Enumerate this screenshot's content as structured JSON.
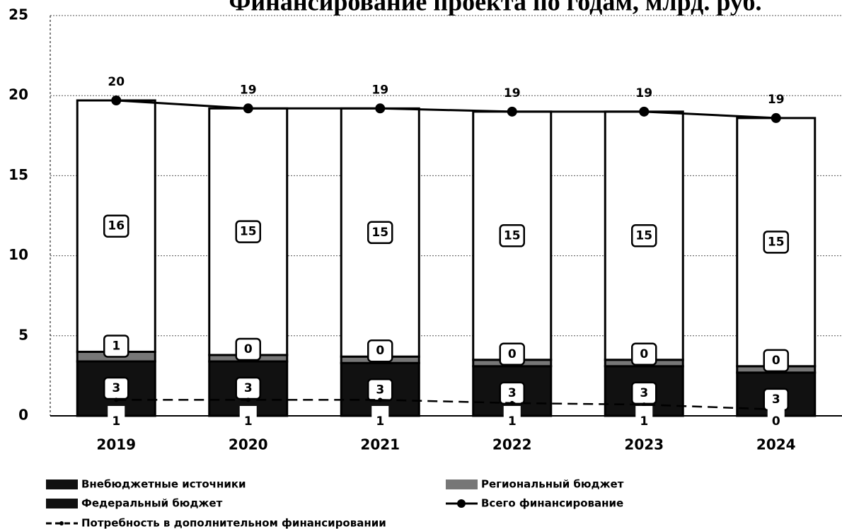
{
  "chart_data": {
    "type": "bar",
    "title": "Финансирование проекта по годам, млрд. руб.",
    "categories": [
      "2019",
      "2020",
      "2021",
      "2022",
      "2023",
      "2024"
    ],
    "stacked": true,
    "series": [
      {
        "name": "Внебюджетные источники",
        "color": "#111111",
        "values": [
          3.4,
          3.4,
          3.3,
          3.1,
          3.1,
          2.7
        ],
        "value_labels": [
          "3",
          "3",
          "3",
          "3",
          "3",
          "3"
        ]
      },
      {
        "name": "Региональный бюджет",
        "color": "#777777",
        "values": [
          0.6,
          0.4,
          0.4,
          0.4,
          0.4,
          0.4
        ],
        "value_labels": [
          "1",
          "0",
          "0",
          "0",
          "0",
          "0"
        ]
      },
      {
        "name": "Федеральный бюджет",
        "color": "#ffffff",
        "values": [
          15.7,
          15.4,
          15.5,
          15.5,
          15.5,
          15.5
        ],
        "value_labels": [
          "16",
          "15",
          "15",
          "15",
          "15",
          "15"
        ]
      },
      {
        "name": "Всего финансирование",
        "type": "line",
        "color": "#000000",
        "values": [
          19.7,
          19.2,
          19.2,
          19.0,
          19.0,
          18.6
        ],
        "value_labels": [
          "20",
          "19",
          "19",
          "19",
          "19",
          "19"
        ]
      },
      {
        "name": "Потребность в дополнительном финансировании",
        "type": "line",
        "dashed": true,
        "color": "#000000",
        "values": [
          1.0,
          1.0,
          1.0,
          0.8,
          0.7,
          0.4
        ],
        "value_labels": [
          "1",
          "1",
          "1",
          "1",
          "1",
          "0"
        ]
      }
    ],
    "ylim": [
      0,
      25
    ],
    "yticks": [
      0,
      5,
      10,
      15,
      20,
      25
    ],
    "grid": true
  }
}
